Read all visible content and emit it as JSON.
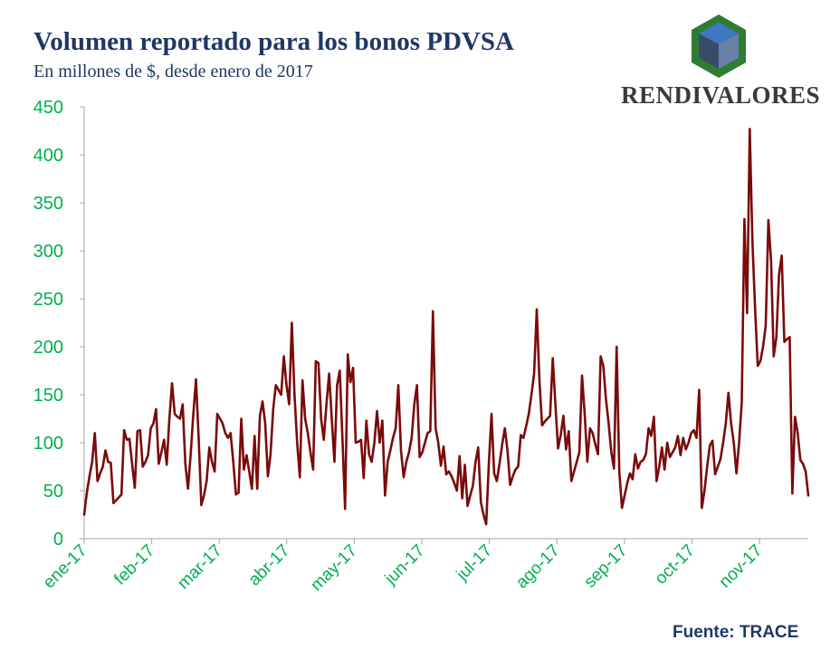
{
  "title": "Volumen reportado para los bonos PDVSA",
  "subtitle": "En millones de $, desde enero de 2017",
  "brand": "RENDIVALORES",
  "source": "Fuente: TRACE",
  "colors": {
    "line": "#7b0a0a",
    "ticks": "#00b050",
    "title": "#1f3864",
    "axis": "#a6a6a6"
  },
  "chart_data": {
    "type": "line",
    "title": "Volumen reportado para los bonos PDVSA",
    "subtitle": "En millones de $, desde enero de 2017",
    "xlabel": "",
    "ylabel": "",
    "ylim": [
      0,
      450
    ],
    "yticks": [
      0,
      50,
      100,
      150,
      200,
      250,
      300,
      350,
      400,
      450
    ],
    "months": [
      "ene-17",
      "feb-17",
      "mar-17",
      "abr-17",
      "may-17",
      "jun-17",
      "jul-17",
      "ago-17",
      "sep-17",
      "oct-17",
      "nov-17"
    ],
    "series": [
      {
        "name": "Volumen reportado",
        "values": [
          25,
          48,
          65,
          80,
          110,
          60,
          68,
          75,
          92,
          80,
          79,
          37,
          40,
          43,
          46,
          113,
          103,
          104,
          78,
          53,
          112,
          113,
          75,
          80,
          87,
          115,
          120,
          135,
          78,
          90,
          103,
          77,
          125,
          162,
          130,
          127,
          125,
          140,
          78,
          52,
          88,
          130,
          166,
          105,
          35,
          45,
          60,
          95,
          80,
          70,
          130,
          125,
          120,
          110,
          105,
          110,
          80,
          46,
          48,
          125,
          72,
          87,
          70,
          52,
          107,
          52,
          128,
          143,
          120,
          65,
          88,
          135,
          160,
          155,
          150,
          190,
          160,
          140,
          225,
          150,
          100,
          64,
          165,
          125,
          110,
          90,
          72,
          185,
          183,
          125,
          103,
          140,
          172,
          125,
          80,
          160,
          175,
          105,
          31,
          192,
          163,
          178,
          100,
          101,
          103,
          63,
          123,
          88,
          80,
          100,
          133,
          100,
          123,
          45,
          80,
          92,
          105,
          115,
          160,
          92,
          64,
          80,
          90,
          105,
          140,
          160,
          85,
          90,
          100,
          110,
          112,
          237,
          115,
          100,
          76,
          96,
          67,
          70,
          65,
          58,
          50,
          86,
          42,
          77,
          34,
          45,
          55,
          80,
          95,
          38,
          25,
          15,
          78,
          130,
          68,
          60,
          78,
          98,
          115,
          92,
          56,
          65,
          72,
          75,
          108,
          105,
          117,
          130,
          150,
          172,
          239,
          165,
          118,
          122,
          125,
          128,
          188,
          140,
          94,
          108,
          128,
          93,
          112,
          60,
          70,
          80,
          90,
          170,
          130,
          80,
          115,
          110,
          98,
          88,
          190,
          180,
          145,
          120,
          90,
          73,
          200,
          70,
          32,
          45,
          58,
          68,
          62,
          88,
          73,
          80,
          82,
          88,
          115,
          107,
          127,
          60,
          75,
          95,
          72,
          100,
          85,
          90,
          95,
          107,
          87,
          105,
          93,
          100,
          110,
          113,
          105,
          155,
          32,
          50,
          75,
          97,
          102,
          67,
          75,
          83,
          100,
          120,
          152,
          120,
          100,
          68,
          100,
          142,
          333,
          235,
          427,
          310,
          240,
          180,
          185,
          200,
          222,
          332,
          290,
          190,
          210,
          275,
          295,
          205,
          208,
          210,
          47,
          127,
          110,
          82,
          78,
          70,
          45
        ]
      }
    ]
  }
}
